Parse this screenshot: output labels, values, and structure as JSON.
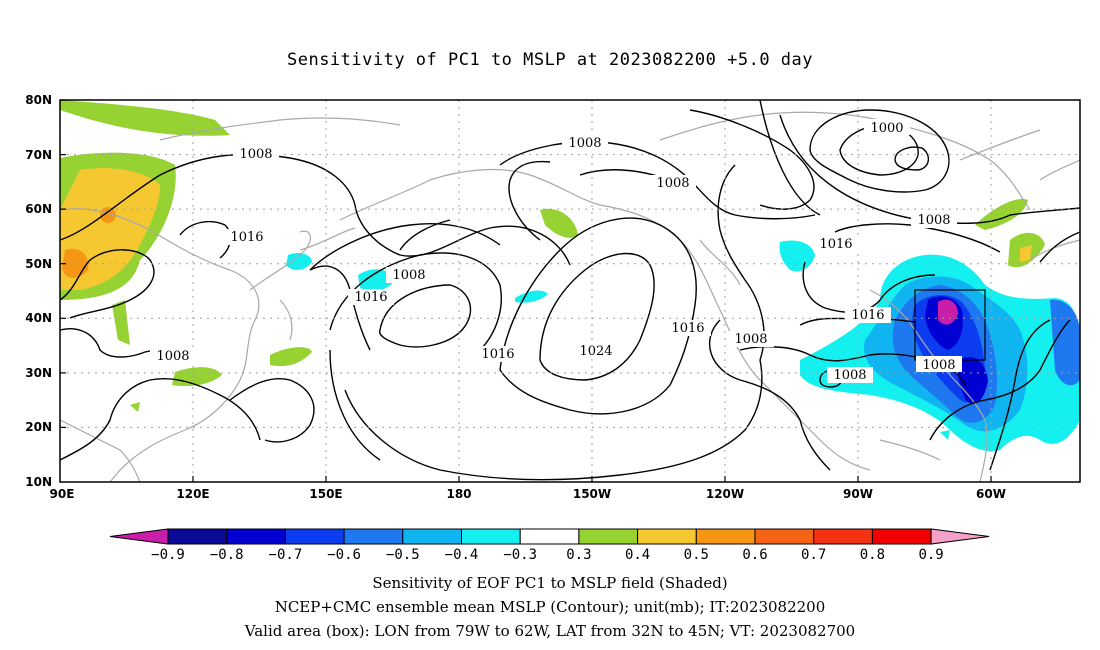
{
  "title": "Sensitivity of PC1 to MSLP at 2023082200 +5.0 day",
  "lat_labels": [
    "80N",
    "70N",
    "60N",
    "50N",
    "40N",
    "30N",
    "20N",
    "10N"
  ],
  "lon_labels": [
    "90E",
    "120E",
    "150E",
    "180",
    "150W",
    "120W",
    "90W",
    "60W"
  ],
  "contour_labels": [
    "1000",
    "1008",
    "1008",
    "1008",
    "1008",
    "1008",
    "1008",
    "1008",
    "1016",
    "1016",
    "1016",
    "1016",
    "1016",
    "1016",
    "1024"
  ],
  "colorbar": {
    "colors": [
      "#0a0a96",
      "#0000d2",
      "#0c3cf0",
      "#1e78f0",
      "#10b4f0",
      "#14f0f0",
      "#ffffff",
      "#96d232",
      "#f5c832",
      "#f59614",
      "#f56414",
      "#f53214",
      "#f00000"
    ],
    "left_arrow_color": "#c81eaa",
    "right_arrow_color": "#f5a0c8",
    "labels": [
      "−0.9",
      "−0.8",
      "−0.7",
      "−0.6",
      "−0.5",
      "−0.4",
      "−0.3",
      "0.3",
      "0.4",
      "0.5",
      "0.6",
      "0.7",
      "0.8",
      "0.9"
    ]
  },
  "captions": [
    "Sensitivity of EOF PC1 to MSLP field (Shaded)",
    "NCEP+CMC ensemble mean MSLP (Contour); unit(mb); IT:2023082200",
    "Valid area (box): LON from 79W to 62W, LAT from 32N to 45N; VT: 2023082700"
  ]
}
